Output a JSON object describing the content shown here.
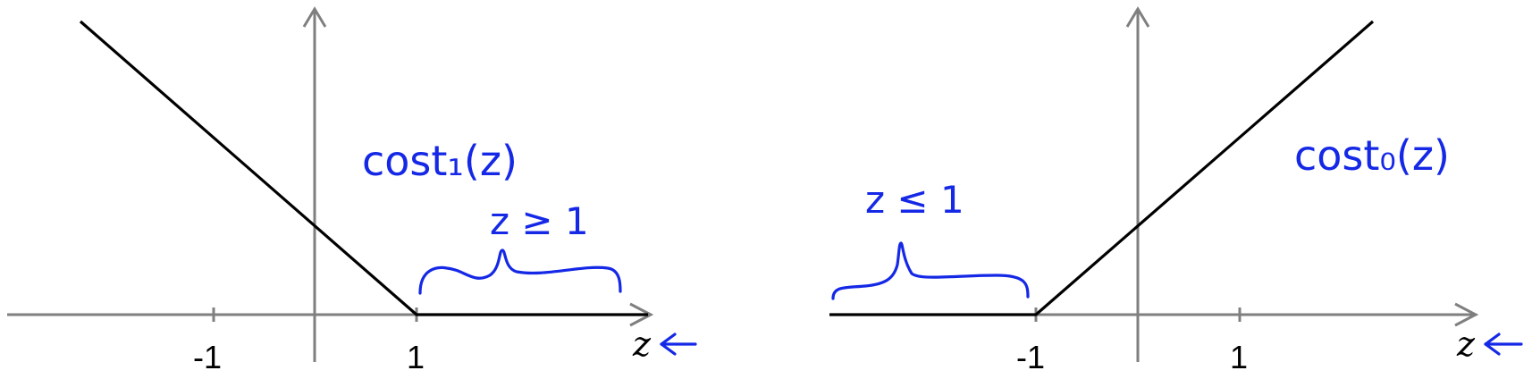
{
  "left_plot": {
    "x_axis_var": "z",
    "ticks": [
      {
        "value": -1,
        "label": "-1"
      },
      {
        "value": 1,
        "label": "1"
      }
    ],
    "function_label": "cost₁(z)",
    "annotation": "z ≥ 1"
  },
  "right_plot": {
    "x_axis_var": "z",
    "ticks": [
      {
        "value": -1,
        "label": "-1"
      },
      {
        "value": 1,
        "label": "1"
      }
    ],
    "function_label": "cost₀(z)",
    "annotation": "z ≤ 1"
  },
  "colors": {
    "axis": "#7f7f7f",
    "curve": "#000000",
    "ink": "#1428e6"
  }
}
